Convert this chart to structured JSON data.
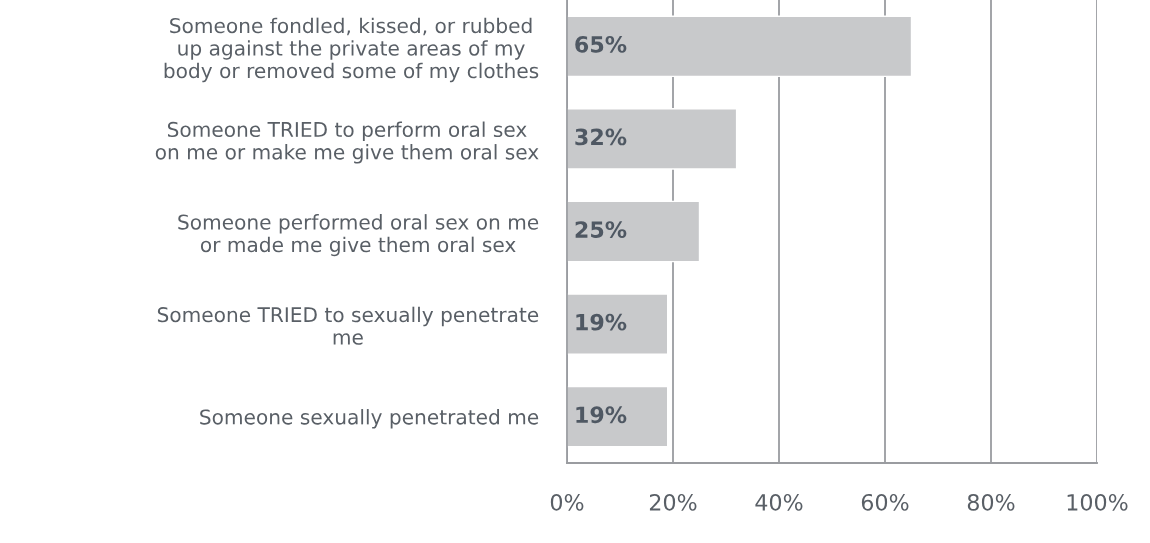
{
  "chart_data": {
    "type": "bar",
    "orientation": "horizontal",
    "categories": [
      "Someone fondled, kissed, or rubbed\nup against the private areas of my\nbody or removed some of my clothes",
      "Someone TRIED to perform oral sex\non me or make me give them oral sex",
      "Someone performed oral sex on me\nor made me give them oral sex",
      "Someone TRIED to sexually penetrate\nme",
      "Someone sexually penetrated me"
    ],
    "values": [
      65,
      32,
      25,
      19,
      19
    ],
    "color": "#c8c9cb",
    "value_labels": [
      "65%",
      "32%",
      "25%",
      "19%",
      "19%"
    ],
    "xlim": [
      0,
      100
    ],
    "xticks": [
      {
        "value": 0,
        "label": "0%"
      },
      {
        "value": 20,
        "label": "20%"
      },
      {
        "value": 40,
        "label": "40%"
      },
      {
        "value": 60,
        "label": "60%"
      },
      {
        "value": 80,
        "label": "80%"
      },
      {
        "value": 100,
        "label": "100%"
      }
    ],
    "grid": "x"
  }
}
